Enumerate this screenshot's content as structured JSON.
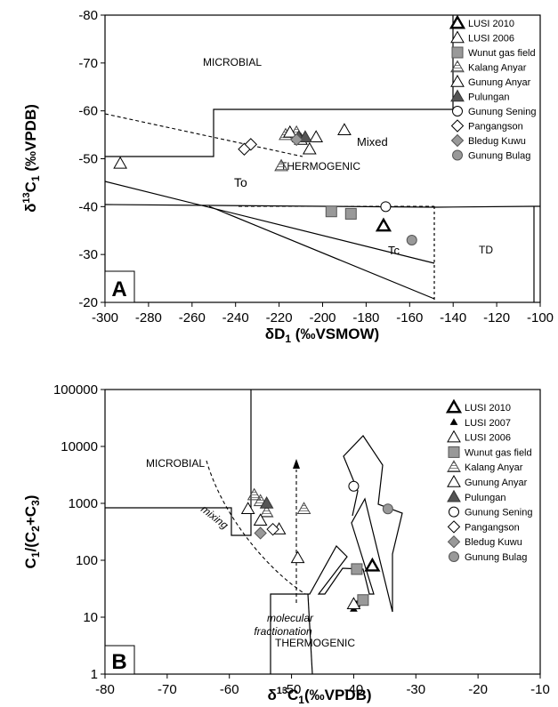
{
  "chart_data": [
    {
      "type": "scatter",
      "panel": "A",
      "xlabel": "δD1 (‰VSMOW)",
      "ylabel": "δ13C1 (‰VPDB)",
      "xlim": [
        -300,
        -100
      ],
      "ylim": [
        -80,
        -20
      ],
      "y_inverted": true,
      "xticks": [
        "-300",
        "-280",
        "-260",
        "-240",
        "-220",
        "-200",
        "-180",
        "-160",
        "-140",
        "-120",
        "-100"
      ],
      "yticks": [
        "-80",
        "-70",
        "-60",
        "-50",
        "-40",
        "-30",
        "-20"
      ],
      "regions": [
        "MICROBIAL",
        "Mixed",
        "To",
        "THERMOGENIC",
        "Tc",
        "TD"
      ],
      "legend": [
        "LUSI 2010",
        "LUSI 2006",
        "Wunut gas field",
        "Kalang Anyar",
        "Gunung Anyar",
        "Pulungan",
        "Gunung Sening",
        "Pangangson",
        "Bledug Kuwu",
        "Gunung Bulag"
      ],
      "series": [
        {
          "name": "LUSI 2010",
          "marker": "tri-bold",
          "points": [
            [
              -172,
              -36
            ]
          ]
        },
        {
          "name": "LUSI 2006",
          "marker": "tri-open",
          "points": [
            [
              -293,
              -49
            ],
            [
              -206,
              -52
            ]
          ]
        },
        {
          "name": "Wunut gas field",
          "marker": "square-gray",
          "points": [
            [
              -196,
              -39
            ],
            [
              -187,
              -38.5
            ]
          ]
        },
        {
          "name": "Kalang Anyar",
          "marker": "tri-hatch",
          "points": [
            [
              -219,
              -48.5
            ],
            [
              -217,
              -55
            ],
            [
              -212,
              -55.5
            ]
          ]
        },
        {
          "name": "Gunung Anyar",
          "marker": "tri-open",
          "points": [
            [
              -215,
              -55.5
            ],
            [
              -210,
              -54
            ],
            [
              -203,
              -54.5
            ],
            [
              -190,
              -56
            ]
          ]
        },
        {
          "name": "Pulungan",
          "marker": "tri-dark",
          "points": [
            [
              -211,
              -54.5
            ],
            [
              -208,
              -54.5
            ]
          ]
        },
        {
          "name": "Gunung Sening",
          "marker": "circle-open",
          "points": [
            [
              -171,
              -40
            ]
          ]
        },
        {
          "name": "Pangangson",
          "marker": "diamond-open",
          "points": [
            [
              -236,
              -52
            ],
            [
              -233,
              -53
            ]
          ]
        },
        {
          "name": "Bledug Kuwu",
          "marker": "diamond-gray",
          "points": [
            [
              -212,
              -54
            ]
          ]
        },
        {
          "name": "Gunung Bulag",
          "marker": "circle-gray",
          "points": [
            [
              -159,
              -33
            ]
          ]
        }
      ]
    },
    {
      "type": "scatter",
      "panel": "B",
      "xlabel": "δ13C1(‰VPDB)",
      "ylabel": "C1/(C2+C3)",
      "xlim": [
        -80,
        -10
      ],
      "ylim": [
        1,
        100000
      ],
      "y_scale": "log",
      "xticks": [
        "-80",
        "-70",
        "-60",
        "-50",
        "-40",
        "-30",
        "-20",
        "-10"
      ],
      "yticks": [
        "1",
        "10",
        "100",
        "1000",
        "10000",
        "100000"
      ],
      "regions": [
        "MICROBIAL",
        "THERMOGENIC",
        "mixing",
        "molecular fractionation"
      ],
      "legend": [
        "LUSI 2010",
        "LUSI 2007",
        "LUSI 2006",
        "Wunut gas field",
        "Kalang Anyar",
        "Gunung Anyar",
        "Pulungan",
        "Gunung Sening",
        "Pangangson",
        "Bledug Kuwu",
        "Gunung Bulag"
      ],
      "series": [
        {
          "name": "LUSI 2010",
          "marker": "tri-bold",
          "points": [
            [
              -37,
              80
            ]
          ]
        },
        {
          "name": "LUSI 2007",
          "marker": "tri-small",
          "points": [
            [
              -40,
              14
            ],
            [
              -39.5,
              17
            ]
          ]
        },
        {
          "name": "LUSI 2006",
          "marker": "tri-open",
          "points": [
            [
              -49,
              110
            ],
            [
              -40,
              17
            ]
          ]
        },
        {
          "name": "Wunut gas field",
          "marker": "square-gray",
          "points": [
            [
              -39.5,
              70
            ],
            [
              -38.5,
              20
            ]
          ]
        },
        {
          "name": "Kalang Anyar",
          "marker": "tri-hatch",
          "points": [
            [
              -56,
              1400
            ],
            [
              -55,
              1100
            ],
            [
              -54,
              700
            ],
            [
              -48,
              800
            ]
          ]
        },
        {
          "name": "Gunung Anyar",
          "marker": "tri-open",
          "points": [
            [
              -57,
              800
            ],
            [
              -55,
              500
            ],
            [
              -52,
              350
            ]
          ]
        },
        {
          "name": "Pulungan",
          "marker": "tri-dark",
          "points": [
            [
              -54,
              1000
            ]
          ]
        },
        {
          "name": "Gunung Sening",
          "marker": "circle-open",
          "points": [
            [
              -40,
              2000
            ]
          ]
        },
        {
          "name": "Pangangson",
          "marker": "diamond-open",
          "points": [
            [
              -53,
              350
            ]
          ]
        },
        {
          "name": "Bledug Kuwu",
          "marker": "diamond-gray",
          "points": [
            [
              -55,
              300
            ]
          ]
        },
        {
          "name": "Gunung Bulag",
          "marker": "circle-gray",
          "points": [
            [
              -34.5,
              800
            ]
          ]
        }
      ]
    }
  ],
  "panelA": {
    "label": "A",
    "xlabel_main": "δD",
    "xlabel_sub": "1",
    "xlabel_rest": " (‰VSMOW)",
    "ylabel_pre": "δ",
    "ylabel_sup": "13",
    "ylabel_c": "C",
    "ylabel_sub": "1",
    "ylabel_rest": " (‰VPDB)",
    "region_microbial": "MICROBIAL",
    "region_mixed": "Mixed",
    "region_to": "To",
    "region_thermo": "THERMOGENIC",
    "region_tc": "Tc",
    "region_td": "TD"
  },
  "panelB": {
    "label": "B",
    "xlabel_pre": "δ",
    "xlabel_sup": "13",
    "xlabel_c": "C",
    "xlabel_sub": "1",
    "xlabel_rest": "(‰VPDB)",
    "ylabel_c1": "C",
    "ylabel_s1": "1",
    "ylabel_mid": "/(C",
    "ylabel_s2": "2",
    "ylabel_plus": "+C",
    "ylabel_s3": "3",
    "ylabel_end": ")",
    "region_microbial": "MICROBIAL",
    "region_thermo": "THERMOGENIC",
    "note_mixing": "mixing",
    "note_mol1": "molecular",
    "note_mol2": "fractionation"
  }
}
